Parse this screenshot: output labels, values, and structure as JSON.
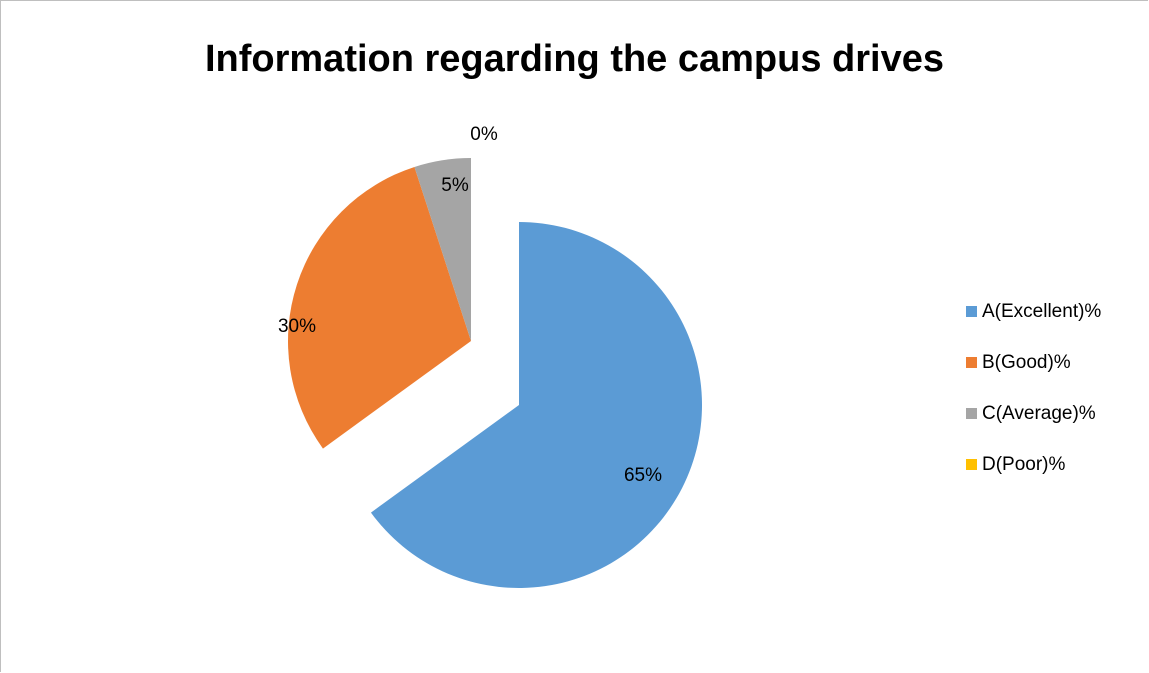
{
  "chart_data": {
    "type": "pie",
    "title": "Information regarding the campus drives",
    "categories": [
      "A(Excellent)%",
      "B(Good)%",
      "C(Average)%",
      "D(Poor)%"
    ],
    "values": [
      65,
      30,
      5,
      0
    ],
    "data_labels": [
      "65%",
      "30%",
      "5%",
      "0%"
    ],
    "colors": [
      "#5b9bd5",
      "#ed7d31",
      "#a5a5a5",
      "#ffc000"
    ],
    "exploded": true,
    "legend_position": "right"
  }
}
